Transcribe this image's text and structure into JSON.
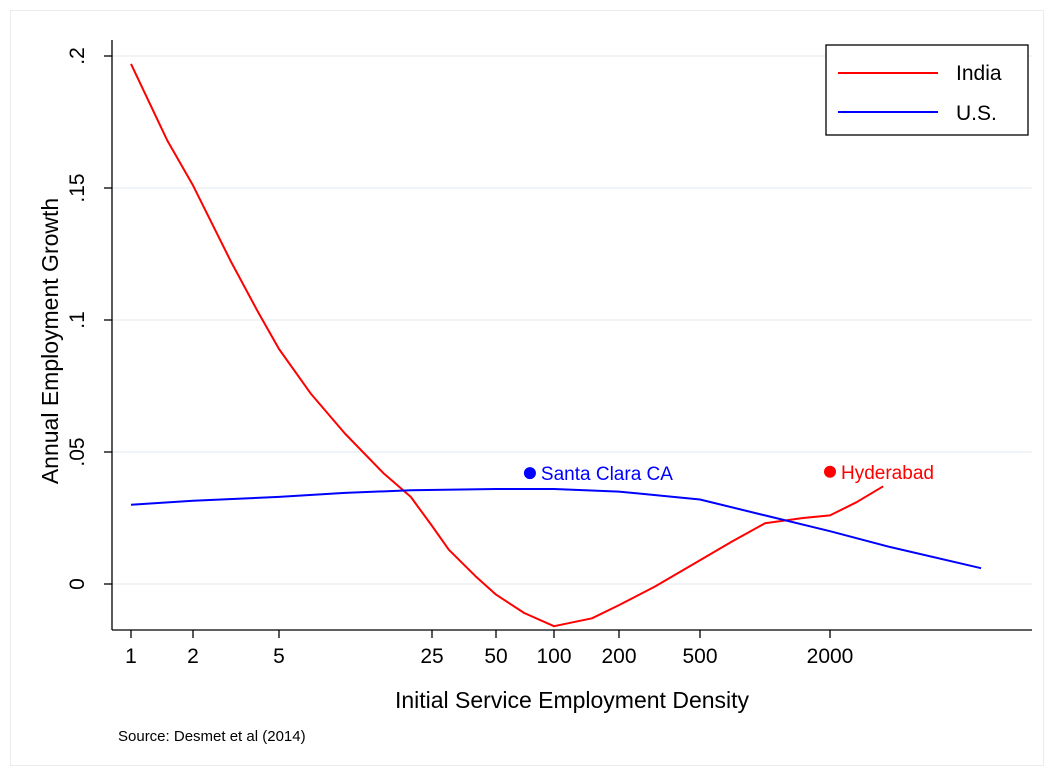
{
  "chart_data": {
    "type": "line",
    "title": "",
    "xlabel": "Initial Service Employment Density",
    "ylabel": "Annual Employment Growth",
    "x_scale": "log",
    "x_ticks": [
      1,
      2,
      5,
      25,
      50,
      100,
      200,
      500,
      2000
    ],
    "x_tick_labels": [
      "1",
      "2",
      "5",
      "25",
      "50",
      "100",
      "200",
      "500",
      "2000"
    ],
    "y_ticks": [
      0,
      0.05,
      0.1,
      0.15,
      0.2
    ],
    "y_tick_labels": [
      "0",
      ".05",
      ".1",
      ".15",
      ".2"
    ],
    "ylim": [
      -0.017,
      0.205
    ],
    "grid": true,
    "legend_position": "top-right",
    "series": [
      {
        "name": "India",
        "color": "#ff0000",
        "points": [
          [
            1.0,
            0.197
          ],
          [
            1.5,
            0.168
          ],
          [
            2.0,
            0.151
          ],
          [
            3.0,
            0.122
          ],
          [
            4.0,
            0.103
          ],
          [
            5.0,
            0.089
          ],
          [
            7.0,
            0.072
          ],
          [
            10.0,
            0.057
          ],
          [
            15.0,
            0.042
          ],
          [
            20.0,
            0.033
          ],
          [
            25.0,
            0.022
          ],
          [
            30.0,
            0.013
          ],
          [
            40.0,
            0.003
          ],
          [
            50.0,
            -0.004
          ],
          [
            70.0,
            -0.011
          ],
          [
            100.0,
            -0.016
          ],
          [
            150.0,
            -0.013
          ],
          [
            200.0,
            -0.008
          ],
          [
            300.0,
            -0.001
          ],
          [
            500.0,
            0.009
          ],
          [
            700.0,
            0.016
          ],
          [
            1000.0,
            0.023
          ],
          [
            1500.0,
            0.025
          ],
          [
            2000.0,
            0.026
          ],
          [
            3000.0,
            0.031
          ],
          [
            4500.0,
            0.037
          ]
        ]
      },
      {
        "name": "U.S.",
        "color": "#0000ff",
        "points": [
          [
            1.0,
            0.03
          ],
          [
            2.0,
            0.0315
          ],
          [
            5.0,
            0.033
          ],
          [
            10.0,
            0.0345
          ],
          [
            20.0,
            0.0355
          ],
          [
            50.0,
            0.036
          ],
          [
            100.0,
            0.036
          ],
          [
            200.0,
            0.035
          ],
          [
            500.0,
            0.032
          ],
          [
            1000.0,
            0.026
          ],
          [
            2000.0,
            0.02
          ],
          [
            5000.0,
            0.014
          ],
          [
            20000.0,
            0.006
          ]
        ]
      }
    ],
    "annotations": [
      {
        "label": "Santa Clara CA",
        "x": 75,
        "y": 0.042,
        "color": "#0000ff"
      },
      {
        "label": "Hyderabad",
        "x": 2000,
        "y": 0.0425,
        "color": "#ff0000"
      }
    ]
  },
  "source_note": "Source: Desmet et al (2014)"
}
